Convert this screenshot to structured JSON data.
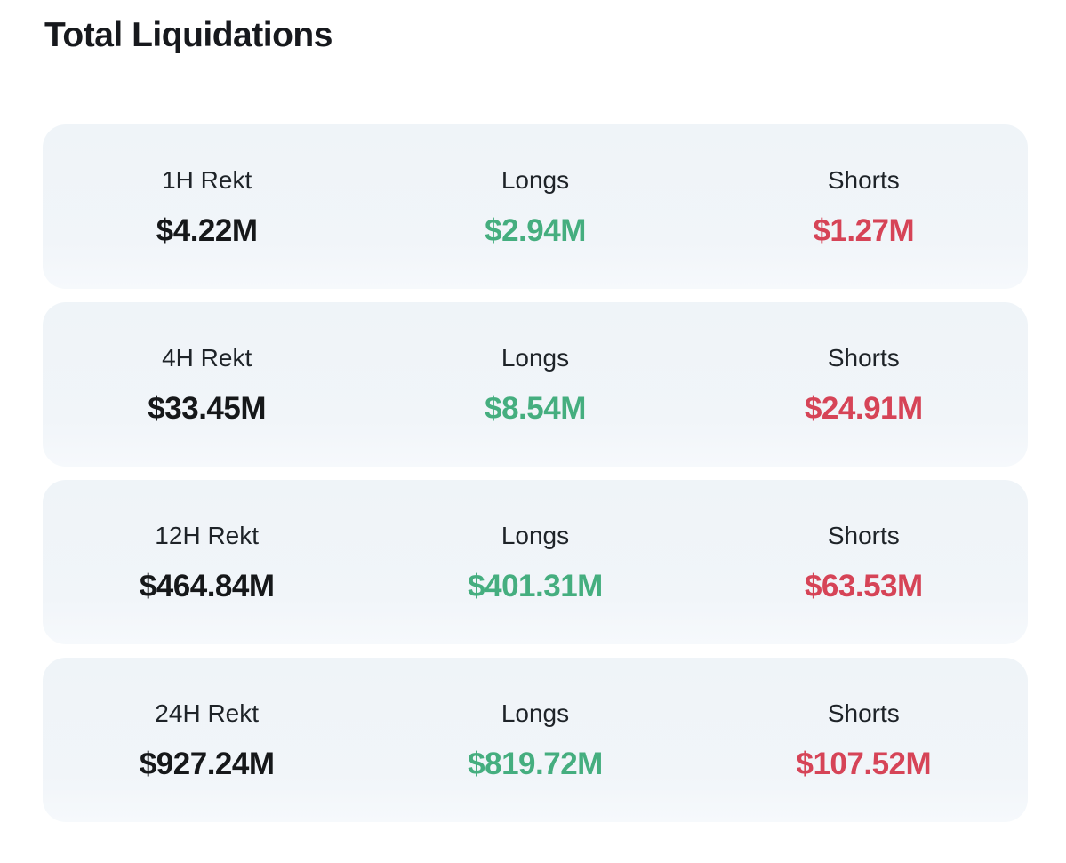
{
  "title": "Total Liquidations",
  "colors": {
    "card_background": "#f0f5f9",
    "total_text": "#16181a",
    "longs_text": "#45ae7f",
    "shorts_text": "#d64457"
  },
  "rows": [
    {
      "period_label": "1H Rekt",
      "total_value": "$4.22M",
      "longs_label": "Longs",
      "longs_value": "$2.94M",
      "shorts_label": "Shorts",
      "shorts_value": "$1.27M"
    },
    {
      "period_label": "4H Rekt",
      "total_value": "$33.45M",
      "longs_label": "Longs",
      "longs_value": "$8.54M",
      "shorts_label": "Shorts",
      "shorts_value": "$24.91M"
    },
    {
      "period_label": "12H Rekt",
      "total_value": "$464.84M",
      "longs_label": "Longs",
      "longs_value": "$401.31M",
      "shorts_label": "Shorts",
      "shorts_value": "$63.53M"
    },
    {
      "period_label": "24H Rekt",
      "total_value": "$927.24M",
      "longs_label": "Longs",
      "longs_value": "$819.72M",
      "shorts_label": "Shorts",
      "shorts_value": "$107.52M"
    }
  ]
}
